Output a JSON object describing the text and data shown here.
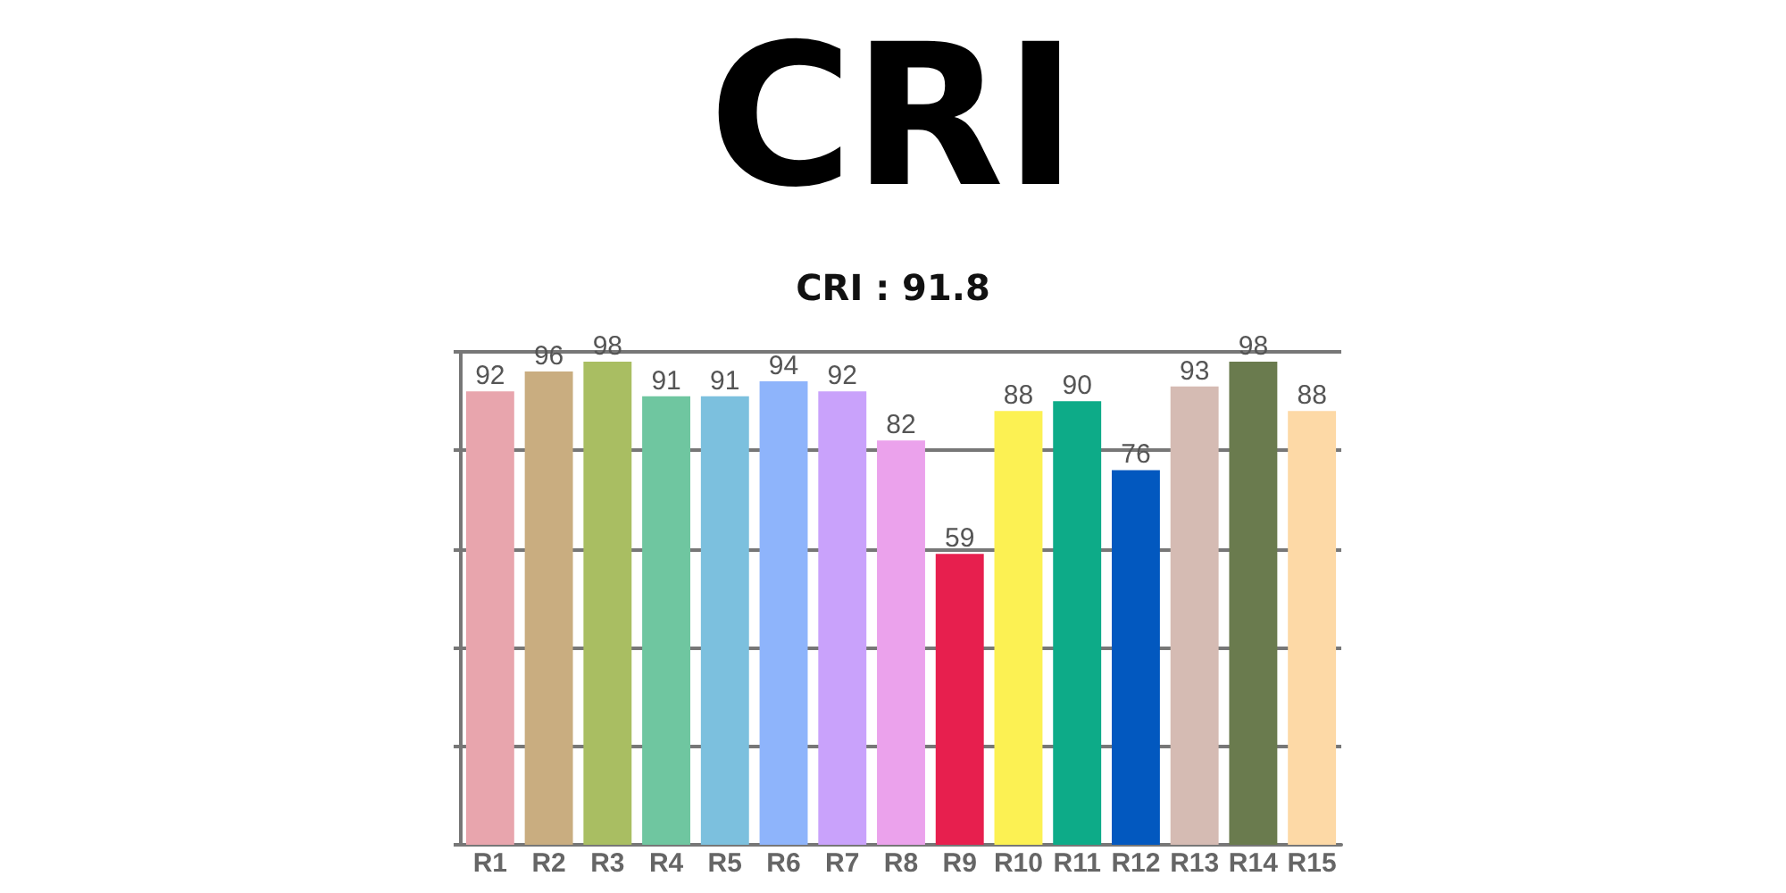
{
  "chart_data": {
    "type": "bar",
    "title": "CRI",
    "subtitle": "CRI : 91.8",
    "categories": [
      "R1",
      "R2",
      "R3",
      "R4",
      "R5",
      "R6",
      "R7",
      "R8",
      "R9",
      "R10",
      "R11",
      "R12",
      "R13",
      "R14",
      "R15"
    ],
    "values": [
      92,
      96,
      98,
      91,
      91,
      94,
      92,
      82,
      59,
      88,
      90,
      76,
      93,
      98,
      88
    ],
    "colors": [
      "#e8a5ad",
      "#c9ad80",
      "#a9be62",
      "#6fc6a0",
      "#7cc0de",
      "#8eb4fb",
      "#c9a2fb",
      "#eba2ec",
      "#e71f4e",
      "#fcf153",
      "#0dab88",
      "#0258bf",
      "#d5bbb3",
      "#6a7b4e",
      "#fdd9a6"
    ],
    "ylim": [
      0,
      100
    ],
    "yticks": [
      {
        "value": 0,
        "label": null
      },
      {
        "value": 20,
        "label": null
      },
      {
        "value": 40,
        "label": null
      },
      {
        "value": 60,
        "label": null
      },
      {
        "value": 80,
        "label": null
      },
      {
        "value": 100,
        "label": null
      }
    ],
    "grid": "y",
    "tick_labels": "x",
    "data_labels": true
  }
}
